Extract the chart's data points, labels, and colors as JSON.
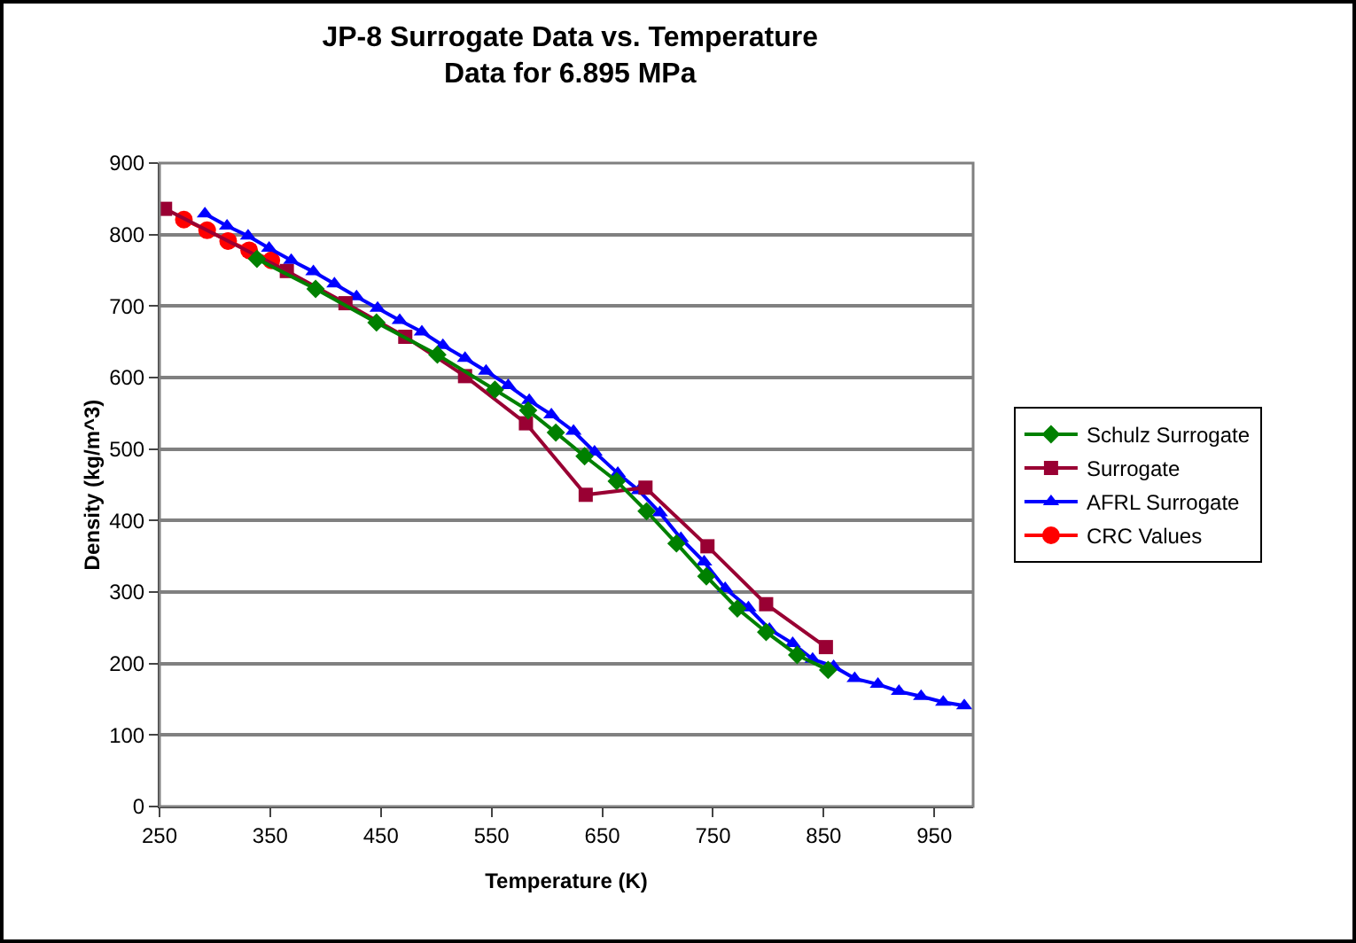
{
  "chart_data": {
    "type": "line",
    "title": "JP-8 Surrogate Data vs. Temperature",
    "subtitle": "Data for 6.895 MPa",
    "xlabel": "Temperature (K)",
    "ylabel": "Density (kg/m^3)",
    "xlim": [
      250,
      985
    ],
    "xticks": [
      250,
      350,
      450,
      550,
      650,
      750,
      850,
      950
    ],
    "ylim": [
      0,
      900
    ],
    "yticks": [
      0,
      100,
      200,
      300,
      400,
      500,
      600,
      700,
      800,
      900
    ],
    "grid": "y",
    "legend": "right",
    "line_style": "solid",
    "series": [
      {
        "name": "Schulz Surrogate",
        "color": "#008000",
        "marker": "diamond",
        "x": [
          338,
          391,
          446,
          501,
          553,
          583,
          608,
          634,
          663,
          690,
          717,
          744,
          772,
          798,
          826,
          854
        ],
        "values": [
          766,
          724,
          677,
          632,
          583,
          554,
          523,
          490,
          455,
          413,
          368,
          322,
          277,
          244,
          212,
          191
        ]
      },
      {
        "name": "Surrogate",
        "color": "#990033",
        "marker": "square",
        "x": [
          255,
          365,
          418,
          472,
          526,
          581,
          635,
          689,
          745,
          798,
          852
        ],
        "values": [
          836,
          749,
          704,
          657,
          602,
          536,
          436,
          446,
          364,
          283,
          223
        ]
      },
      {
        "name": "AFRL Surrogate",
        "color": "#0000ff",
        "marker": "triangle",
        "x": [
          291,
          311,
          330,
          349,
          369,
          389,
          408,
          428,
          447,
          467,
          487,
          506,
          526,
          545,
          565,
          584,
          604,
          624,
          643,
          664,
          683,
          702,
          721,
          742,
          761,
          782,
          801,
          822,
          840,
          859,
          878,
          899,
          918,
          938,
          958,
          977
        ],
        "values": [
          829,
          812,
          798,
          781,
          764,
          748,
          731,
          713,
          697,
          680,
          664,
          645,
          627,
          609,
          589,
          568,
          548,
          525,
          496,
          466,
          442,
          411,
          375,
          342,
          305,
          278,
          248,
          228,
          206,
          196,
          179,
          171,
          161,
          154,
          146,
          141
        ]
      },
      {
        "name": "CRC Values",
        "color": "#ff0000",
        "marker": "circle",
        "x": [
          272,
          293,
          312,
          331,
          351
        ],
        "values": [
          821,
          806,
          791,
          778,
          764
        ]
      }
    ]
  }
}
